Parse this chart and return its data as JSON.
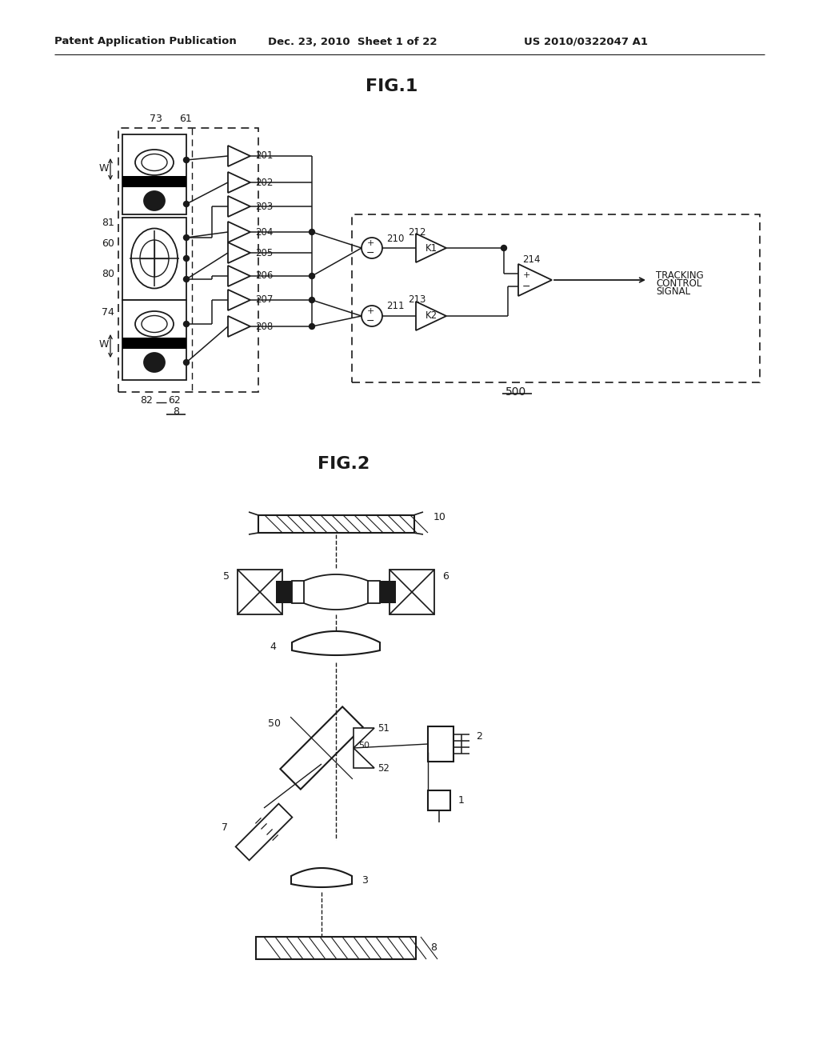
{
  "bg_color": "#ffffff",
  "header_left": "Patent Application Publication",
  "header_mid": "Dec. 23, 2010  Sheet 1 of 22",
  "header_right": "US 2010/0322047 A1",
  "fig1_title": "FIG.1",
  "fig2_title": "FIG.2",
  "text_color": "#1a1a1a",
  "line_color": "#1a1a1a"
}
